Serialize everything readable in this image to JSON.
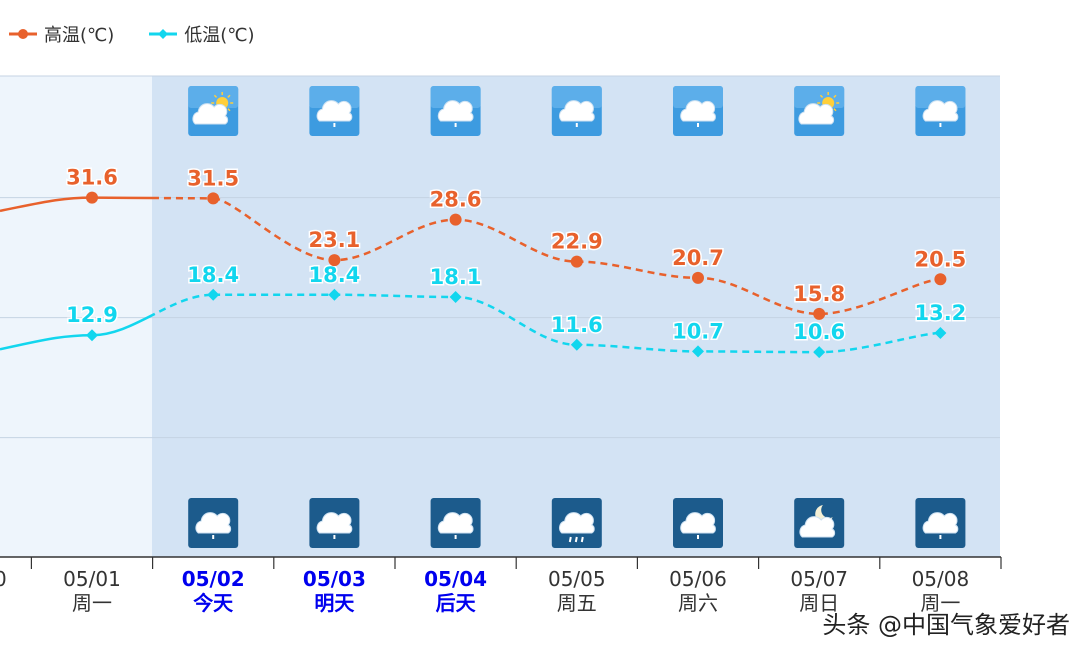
{
  "legend": {
    "high_label": "高温(℃)",
    "low_label": "低温(℃)"
  },
  "colors": {
    "high": "#e8612c",
    "low": "#12d6ee",
    "forecast_bg": "#d3e3f4",
    "past_bg": "#eef5fc",
    "grid": "#c5d3e3",
    "today_label": "#0000ee",
    "normal_label": "#333333"
  },
  "watermark": "头条 @中国气象爱好者",
  "chart_data": {
    "type": "line",
    "x": [
      "05/01",
      "05/02",
      "05/03",
      "05/04",
      "05/05",
      "05/06",
      "05/07",
      "05/08"
    ],
    "weekdays": [
      "周一",
      "今天",
      "明天",
      "后天",
      "周五",
      "周六",
      "周日",
      "周一"
    ],
    "highlight_days": [
      "05/02",
      "05/03",
      "05/04"
    ],
    "partial_left_tick_label": "0",
    "series": [
      {
        "name": "高温(℃)",
        "values": [
          31.6,
          31.5,
          23.1,
          28.6,
          22.9,
          20.7,
          15.8,
          20.5
        ],
        "marker": "circle",
        "forecast_dashed": true
      },
      {
        "name": "低温(℃)",
        "values": [
          12.9,
          18.4,
          18.4,
          18.1,
          11.6,
          10.7,
          10.6,
          13.2
        ],
        "marker": "diamond",
        "forecast_dashed": true
      }
    ],
    "left_edge_values": {
      "high": 29.8,
      "low": 11.0
    },
    "day_icons": [
      "partly-cloudy-sun-icon",
      "cloudy-icon",
      "cloudy-icon",
      "cloudy-icon",
      "cloudy-icon",
      "partly-cloudy-sun-icon",
      "cloudy-icon"
    ],
    "night_icons": [
      "cloudy-icon",
      "cloudy-icon",
      "cloudy-icon",
      "light-rain-icon",
      "cloudy-icon",
      "moon-cloud-icon",
      "cloudy-icon"
    ],
    "icon_days": [
      "05/02",
      "05/03",
      "05/04",
      "05/05",
      "05/06",
      "05/07",
      "05/08"
    ],
    "grid": true,
    "legend_position": "top-left"
  }
}
